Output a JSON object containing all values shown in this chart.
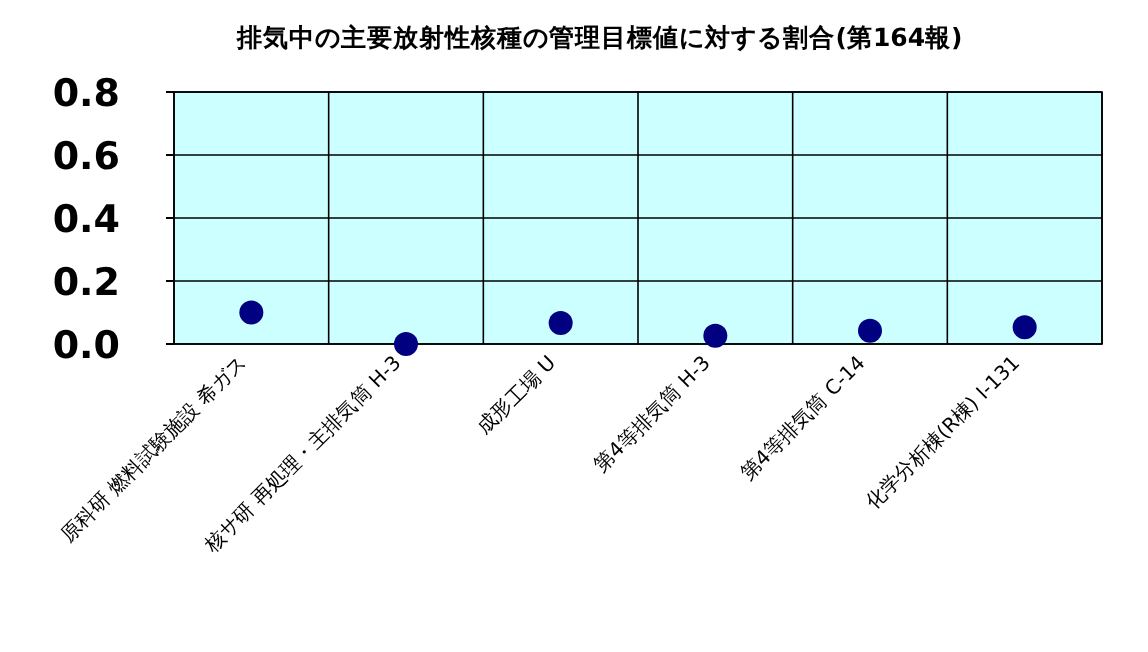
{
  "chart_data": {
    "type": "scatter",
    "title": "排気中の主要放射性核種の管理目標値に対する割合(第164報)",
    "categories": [
      "原科研 燃料試験施設 希ガス",
      "核サ研 再処理・主排気筒 H-3",
      "成形工場 U",
      "第4等排気筒 H-3",
      "第4等排気筒 C-14",
      "化学分析棟(R棟) I-131"
    ],
    "series": [
      {
        "color": "#000080",
        "values": [
          0.1,
          0.0,
          0.067,
          0.026,
          0.042,
          0.053
        ]
      }
    ],
    "ylim": [
      0,
      0.8
    ],
    "yticks": [
      {
        "value": 0,
        "label": "0.0"
      },
      {
        "value": 0.2,
        "label": "0.2"
      },
      {
        "value": 0.4,
        "label": "0.4"
      },
      {
        "value": 0.6,
        "label": "0.6"
      },
      {
        "value": 0.8,
        "label": "0.8"
      }
    ],
    "grid": true,
    "marker": "circle"
  }
}
